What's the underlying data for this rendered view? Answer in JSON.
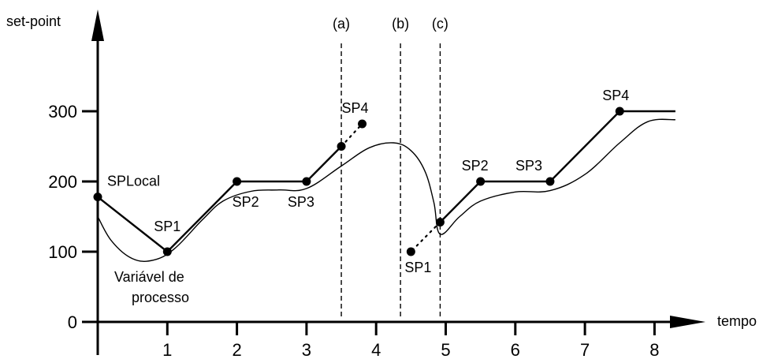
{
  "chart_data": {
    "type": "line",
    "ylabel": "set-point",
    "xlabel": "tempo",
    "xlim": [
      0,
      8.3
    ],
    "ylim": [
      0,
      300
    ],
    "xticks": [
      "1",
      "2",
      "3",
      "4",
      "5",
      "6",
      "7",
      "8"
    ],
    "yticks": [
      "0",
      "100",
      "200",
      "300"
    ],
    "vertical_markers": [
      {
        "label": "(a)",
        "x": 3.5
      },
      {
        "label": "(b)",
        "x": 4.35
      },
      {
        "label": "(c)",
        "x": 4.92
      }
    ],
    "series": [
      {
        "name": "",
        "style": "solid",
        "segments": [
          [
            [
              0,
              178
            ],
            [
              1,
              100
            ],
            [
              2,
              200
            ],
            [
              3,
              200
            ],
            [
              3.5,
              250
            ]
          ],
          [
            [
              4.92,
              142
            ],
            [
              5.5,
              200
            ],
            [
              6.5,
              200
            ],
            [
              7.5,
              300
            ],
            [
              8.3,
              300
            ]
          ]
        ]
      },
      {
        "name": "Variável de processo",
        "style": "solid",
        "points": [
          [
            0,
            150
          ],
          [
            0.2,
            115
          ],
          [
            0.5,
            90
          ],
          [
            0.8,
            88
          ],
          [
            1.1,
            104
          ],
          [
            1.5,
            145
          ],
          [
            1.8,
            172
          ],
          [
            2.2,
            186
          ],
          [
            2.6,
            188
          ],
          [
            3.0,
            190
          ],
          [
            3.5,
            222
          ],
          [
            3.9,
            248
          ],
          [
            4.25,
            255
          ],
          [
            4.5,
            244
          ],
          [
            4.7,
            215
          ],
          [
            4.83,
            170
          ],
          [
            4.92,
            125
          ],
          [
            5.2,
            150
          ],
          [
            5.5,
            172
          ],
          [
            6.0,
            185
          ],
          [
            6.5,
            187
          ],
          [
            7.0,
            210
          ],
          [
            7.5,
            255
          ],
          [
            7.9,
            285
          ],
          [
            8.3,
            288
          ]
        ]
      },
      {
        "name": "",
        "style": "dotted",
        "segments": [
          [
            [
              3.5,
              250
            ],
            [
              3.8,
              282
            ]
          ],
          [
            [
              4.92,
              142
            ],
            [
              4.5,
              100
            ]
          ]
        ]
      }
    ],
    "points": [
      {
        "label": "SPLocal",
        "x": 0,
        "y": 178
      },
      {
        "label": "SP1",
        "x": 1,
        "y": 100
      },
      {
        "label": "SP2",
        "x": 2,
        "y": 200
      },
      {
        "label": "SP3",
        "x": 3,
        "y": 200
      },
      {
        "label": "",
        "x": 3.5,
        "y": 250
      },
      {
        "label": "SP4",
        "x": 3.8,
        "y": 282
      },
      {
        "label": "SP1",
        "x": 4.5,
        "y": 100
      },
      {
        "label": "",
        "x": 4.92,
        "y": 142
      },
      {
        "label": "SP2",
        "x": 5.5,
        "y": 200
      },
      {
        "label": "SP3",
        "x": 6.5,
        "y": 200
      },
      {
        "label": "SP4",
        "x": 7.5,
        "y": 300
      }
    ],
    "annotations": [
      "Variável de",
      "processo"
    ]
  }
}
